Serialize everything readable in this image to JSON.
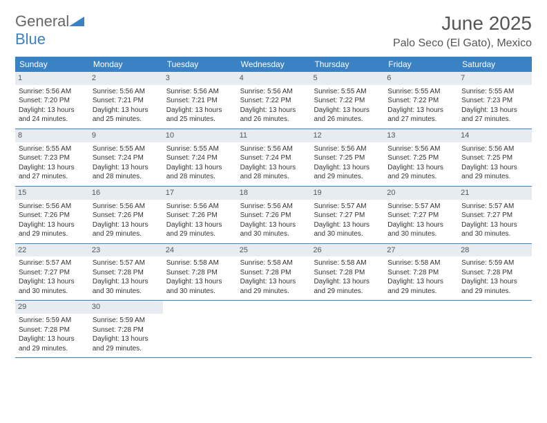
{
  "logo": {
    "text1": "General",
    "text2": "Blue"
  },
  "title": "June 2025",
  "location": "Palo Seco (El Gato), Mexico",
  "colors": {
    "header_bg": "#3b82c4",
    "daynum_bg": "#e6ecf2",
    "text": "#333333",
    "border": "#3b82c4"
  },
  "day_headers": [
    "Sunday",
    "Monday",
    "Tuesday",
    "Wednesday",
    "Thursday",
    "Friday",
    "Saturday"
  ],
  "weeks": [
    [
      {
        "num": "1",
        "sunrise": "Sunrise: 5:56 AM",
        "sunset": "Sunset: 7:20 PM",
        "dl1": "Daylight: 13 hours",
        "dl2": "and 24 minutes."
      },
      {
        "num": "2",
        "sunrise": "Sunrise: 5:56 AM",
        "sunset": "Sunset: 7:21 PM",
        "dl1": "Daylight: 13 hours",
        "dl2": "and 25 minutes."
      },
      {
        "num": "3",
        "sunrise": "Sunrise: 5:56 AM",
        "sunset": "Sunset: 7:21 PM",
        "dl1": "Daylight: 13 hours",
        "dl2": "and 25 minutes."
      },
      {
        "num": "4",
        "sunrise": "Sunrise: 5:56 AM",
        "sunset": "Sunset: 7:22 PM",
        "dl1": "Daylight: 13 hours",
        "dl2": "and 26 minutes."
      },
      {
        "num": "5",
        "sunrise": "Sunrise: 5:55 AM",
        "sunset": "Sunset: 7:22 PM",
        "dl1": "Daylight: 13 hours",
        "dl2": "and 26 minutes."
      },
      {
        "num": "6",
        "sunrise": "Sunrise: 5:55 AM",
        "sunset": "Sunset: 7:22 PM",
        "dl1": "Daylight: 13 hours",
        "dl2": "and 27 minutes."
      },
      {
        "num": "7",
        "sunrise": "Sunrise: 5:55 AM",
        "sunset": "Sunset: 7:23 PM",
        "dl1": "Daylight: 13 hours",
        "dl2": "and 27 minutes."
      }
    ],
    [
      {
        "num": "8",
        "sunrise": "Sunrise: 5:55 AM",
        "sunset": "Sunset: 7:23 PM",
        "dl1": "Daylight: 13 hours",
        "dl2": "and 27 minutes."
      },
      {
        "num": "9",
        "sunrise": "Sunrise: 5:55 AM",
        "sunset": "Sunset: 7:24 PM",
        "dl1": "Daylight: 13 hours",
        "dl2": "and 28 minutes."
      },
      {
        "num": "10",
        "sunrise": "Sunrise: 5:55 AM",
        "sunset": "Sunset: 7:24 PM",
        "dl1": "Daylight: 13 hours",
        "dl2": "and 28 minutes."
      },
      {
        "num": "11",
        "sunrise": "Sunrise: 5:56 AM",
        "sunset": "Sunset: 7:24 PM",
        "dl1": "Daylight: 13 hours",
        "dl2": "and 28 minutes."
      },
      {
        "num": "12",
        "sunrise": "Sunrise: 5:56 AM",
        "sunset": "Sunset: 7:25 PM",
        "dl1": "Daylight: 13 hours",
        "dl2": "and 29 minutes."
      },
      {
        "num": "13",
        "sunrise": "Sunrise: 5:56 AM",
        "sunset": "Sunset: 7:25 PM",
        "dl1": "Daylight: 13 hours",
        "dl2": "and 29 minutes."
      },
      {
        "num": "14",
        "sunrise": "Sunrise: 5:56 AM",
        "sunset": "Sunset: 7:25 PM",
        "dl1": "Daylight: 13 hours",
        "dl2": "and 29 minutes."
      }
    ],
    [
      {
        "num": "15",
        "sunrise": "Sunrise: 5:56 AM",
        "sunset": "Sunset: 7:26 PM",
        "dl1": "Daylight: 13 hours",
        "dl2": "and 29 minutes."
      },
      {
        "num": "16",
        "sunrise": "Sunrise: 5:56 AM",
        "sunset": "Sunset: 7:26 PM",
        "dl1": "Daylight: 13 hours",
        "dl2": "and 29 minutes."
      },
      {
        "num": "17",
        "sunrise": "Sunrise: 5:56 AM",
        "sunset": "Sunset: 7:26 PM",
        "dl1": "Daylight: 13 hours",
        "dl2": "and 29 minutes."
      },
      {
        "num": "18",
        "sunrise": "Sunrise: 5:56 AM",
        "sunset": "Sunset: 7:26 PM",
        "dl1": "Daylight: 13 hours",
        "dl2": "and 30 minutes."
      },
      {
        "num": "19",
        "sunrise": "Sunrise: 5:57 AM",
        "sunset": "Sunset: 7:27 PM",
        "dl1": "Daylight: 13 hours",
        "dl2": "and 30 minutes."
      },
      {
        "num": "20",
        "sunrise": "Sunrise: 5:57 AM",
        "sunset": "Sunset: 7:27 PM",
        "dl1": "Daylight: 13 hours",
        "dl2": "and 30 minutes."
      },
      {
        "num": "21",
        "sunrise": "Sunrise: 5:57 AM",
        "sunset": "Sunset: 7:27 PM",
        "dl1": "Daylight: 13 hours",
        "dl2": "and 30 minutes."
      }
    ],
    [
      {
        "num": "22",
        "sunrise": "Sunrise: 5:57 AM",
        "sunset": "Sunset: 7:27 PM",
        "dl1": "Daylight: 13 hours",
        "dl2": "and 30 minutes."
      },
      {
        "num": "23",
        "sunrise": "Sunrise: 5:57 AM",
        "sunset": "Sunset: 7:28 PM",
        "dl1": "Daylight: 13 hours",
        "dl2": "and 30 minutes."
      },
      {
        "num": "24",
        "sunrise": "Sunrise: 5:58 AM",
        "sunset": "Sunset: 7:28 PM",
        "dl1": "Daylight: 13 hours",
        "dl2": "and 30 minutes."
      },
      {
        "num": "25",
        "sunrise": "Sunrise: 5:58 AM",
        "sunset": "Sunset: 7:28 PM",
        "dl1": "Daylight: 13 hours",
        "dl2": "and 29 minutes."
      },
      {
        "num": "26",
        "sunrise": "Sunrise: 5:58 AM",
        "sunset": "Sunset: 7:28 PM",
        "dl1": "Daylight: 13 hours",
        "dl2": "and 29 minutes."
      },
      {
        "num": "27",
        "sunrise": "Sunrise: 5:58 AM",
        "sunset": "Sunset: 7:28 PM",
        "dl1": "Daylight: 13 hours",
        "dl2": "and 29 minutes."
      },
      {
        "num": "28",
        "sunrise": "Sunrise: 5:59 AM",
        "sunset": "Sunset: 7:28 PM",
        "dl1": "Daylight: 13 hours",
        "dl2": "and 29 minutes."
      }
    ],
    [
      {
        "num": "29",
        "sunrise": "Sunrise: 5:59 AM",
        "sunset": "Sunset: 7:28 PM",
        "dl1": "Daylight: 13 hours",
        "dl2": "and 29 minutes."
      },
      {
        "num": "30",
        "sunrise": "Sunrise: 5:59 AM",
        "sunset": "Sunset: 7:28 PM",
        "dl1": "Daylight: 13 hours",
        "dl2": "and 29 minutes."
      },
      null,
      null,
      null,
      null,
      null
    ]
  ]
}
